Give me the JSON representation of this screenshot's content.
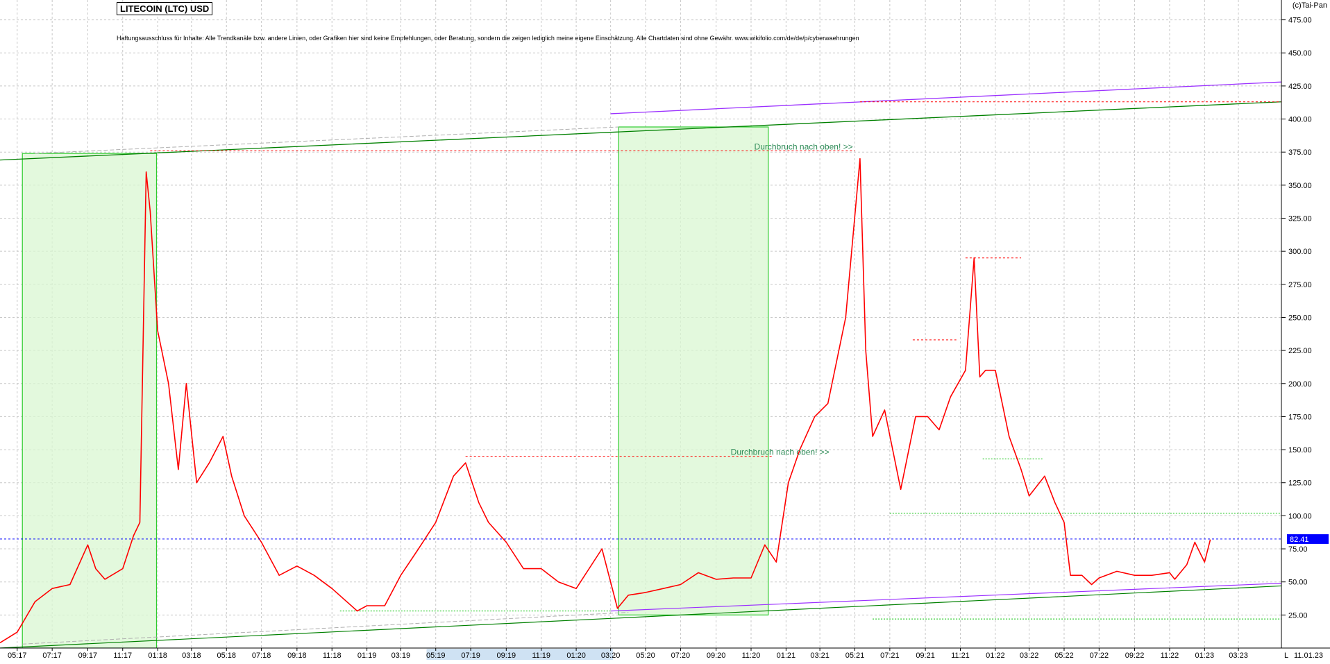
{
  "header": {
    "title": "LITECOIN (LTC) USD",
    "disclaimer": "Haftungsausschluss für Inhalte: Alle Trendkanäle bzw. andere Linien, oder Grafiken hier sind keine Empfehlungen, oder Beratung, sondern die zeigen lediglich meine eigene Einschätzung. Alle Chartdaten sind ohne Gewähr.  www.wikifolio.com/de/de/p/cyberwaehrungen",
    "copyright": "(c)Tai-Pan"
  },
  "chart_data": {
    "type": "line",
    "title": "LITECOIN (LTC) USD",
    "ylim": [
      0,
      490
    ],
    "xlim": [
      "2017-04-01",
      "2023-05-15"
    ],
    "grid": true,
    "y_ticks": [
      25,
      50,
      75,
      100,
      125,
      150,
      175,
      200,
      225,
      250,
      275,
      300,
      325,
      350,
      375,
      400,
      425,
      450,
      475
    ],
    "y_tick_labels": [
      "25.00",
      "50.00",
      "75.00",
      "100.00",
      "125.00",
      "150.00",
      "175.00",
      "200.00",
      "225.00",
      "250.00",
      "275.00",
      "300.00",
      "325.00",
      "350.00",
      "375.00",
      "400.00",
      "425.00",
      "450.00",
      "475.00"
    ],
    "x_ticks": [
      {
        "label": "05:17",
        "x": "2017-05-01"
      },
      {
        "label": "07:17",
        "x": "2017-07-01"
      },
      {
        "label": "09:17",
        "x": "2017-09-01"
      },
      {
        "label": "11:17",
        "x": "2017-11-01"
      },
      {
        "label": "01:18",
        "x": "2018-01-01"
      },
      {
        "label": "03:18",
        "x": "2018-03-01"
      },
      {
        "label": "05:18",
        "x": "2018-05-01"
      },
      {
        "label": "07:18",
        "x": "2018-07-01"
      },
      {
        "label": "09:18",
        "x": "2018-09-01"
      },
      {
        "label": "11:18",
        "x": "2018-11-01"
      },
      {
        "label": "01:19",
        "x": "2019-01-01"
      },
      {
        "label": "03:19",
        "x": "2019-03-01"
      },
      {
        "label": "05:19",
        "x": "2019-05-01"
      },
      {
        "label": "07:19",
        "x": "2019-07-01"
      },
      {
        "label": "09:19",
        "x": "2019-09-01"
      },
      {
        "label": "11:19",
        "x": "2019-11-01"
      },
      {
        "label": "01:20",
        "x": "2020-01-01"
      },
      {
        "label": "03:20",
        "x": "2020-03-01"
      },
      {
        "label": "05:20",
        "x": "2020-05-01"
      },
      {
        "label": "07:20",
        "x": "2020-07-01"
      },
      {
        "label": "09:20",
        "x": "2020-09-01"
      },
      {
        "label": "11:20",
        "x": "2020-11-01"
      },
      {
        "label": "01:21",
        "x": "2021-01-01"
      },
      {
        "label": "03:21",
        "x": "2021-03-01"
      },
      {
        "label": "05:21",
        "x": "2021-05-01"
      },
      {
        "label": "07:21",
        "x": "2021-07-01"
      },
      {
        "label": "09:21",
        "x": "2021-09-01"
      },
      {
        "label": "11:21",
        "x": "2021-11-01"
      },
      {
        "label": "01:22",
        "x": "2022-01-01"
      },
      {
        "label": "03:22",
        "x": "2022-03-01"
      },
      {
        "label": "05:22",
        "x": "2022-05-01"
      },
      {
        "label": "07:22",
        "x": "2022-07-01"
      },
      {
        "label": "09:22",
        "x": "2022-09-01"
      },
      {
        "label": "11:22",
        "x": "2022-11-01"
      },
      {
        "label": "01:23",
        "x": "2023-01-01"
      },
      {
        "label": "03:23",
        "x": "2023-03-01"
      }
    ],
    "date_label": "11.01.23",
    "corner_label": "L",
    "last_price": 82.41,
    "last_price_label": "82.41",
    "series": [
      {
        "color": "#ff0000",
        "x": [
          "2017-04-01",
          "2017-05-01",
          "2017-06-01",
          "2017-07-01",
          "2017-08-01",
          "2017-09-01",
          "2017-09-15",
          "2017-10-01",
          "2017-11-01",
          "2017-11-20",
          "2017-12-01",
          "2017-12-12",
          "2017-12-19",
          "2018-01-01",
          "2018-01-20",
          "2018-02-06",
          "2018-02-20",
          "2018-03-10",
          "2018-04-01",
          "2018-04-25",
          "2018-05-10",
          "2018-06-01",
          "2018-07-01",
          "2018-08-01",
          "2018-09-01",
          "2018-10-01",
          "2018-11-01",
          "2018-12-15",
          "2019-01-01",
          "2019-02-01",
          "2019-03-01",
          "2019-04-01",
          "2019-05-01",
          "2019-06-01",
          "2019-06-22",
          "2019-07-15",
          "2019-08-01",
          "2019-09-01",
          "2019-10-01",
          "2019-11-01",
          "2019-12-01",
          "2020-01-01",
          "2020-02-15",
          "2020-03-13",
          "2020-04-01",
          "2020-05-01",
          "2020-06-01",
          "2020-07-01",
          "2020-08-01",
          "2020-09-01",
          "2020-10-01",
          "2020-11-01",
          "2020-11-25",
          "2020-12-15",
          "2021-01-05",
          "2021-01-25",
          "2021-02-20",
          "2021-03-15",
          "2021-04-15",
          "2021-05-10",
          "2021-05-20",
          "2021-06-01",
          "2021-06-22",
          "2021-07-20",
          "2021-08-15",
          "2021-09-05",
          "2021-09-25",
          "2021-10-15",
          "2021-11-10",
          "2021-11-25",
          "2021-12-05",
          "2021-12-15",
          "2022-01-01",
          "2022-01-25",
          "2022-02-15",
          "2022-03-01",
          "2022-03-28",
          "2022-04-15",
          "2022-05-01",
          "2022-05-12",
          "2022-06-01",
          "2022-06-18",
          "2022-07-01",
          "2022-08-01",
          "2022-09-01",
          "2022-10-01",
          "2022-11-01",
          "2022-11-10",
          "2022-12-01",
          "2022-12-15",
          "2023-01-01",
          "2023-01-11"
        ],
        "values": [
          4,
          12,
          35,
          45,
          48,
          78,
          60,
          52,
          60,
          85,
          95,
          360,
          330,
          240,
          200,
          135,
          200,
          125,
          140,
          160,
          130,
          100,
          80,
          55,
          62,
          55,
          45,
          28,
          32,
          32,
          55,
          75,
          95,
          130,
          140,
          110,
          95,
          80,
          60,
          60,
          50,
          45,
          75,
          30,
          40,
          42,
          45,
          48,
          57,
          52,
          53,
          53,
          78,
          65,
          125,
          150,
          175,
          185,
          250,
          370,
          225,
          160,
          180,
          120,
          175,
          175,
          165,
          190,
          210,
          295,
          205,
          210,
          210,
          160,
          135,
          115,
          130,
          110,
          95,
          55,
          55,
          48,
          53,
          58,
          55,
          55,
          57,
          52,
          63,
          80,
          65,
          82
        ]
      }
    ],
    "annotations": [
      {
        "text": "Durchbruch nach oben! >>",
        "x": "2021-03-15",
        "y": 146
      },
      {
        "text": "Durchbruch nach oben! >>",
        "x": "2021-04-25",
        "y": 377
      }
    ]
  }
}
